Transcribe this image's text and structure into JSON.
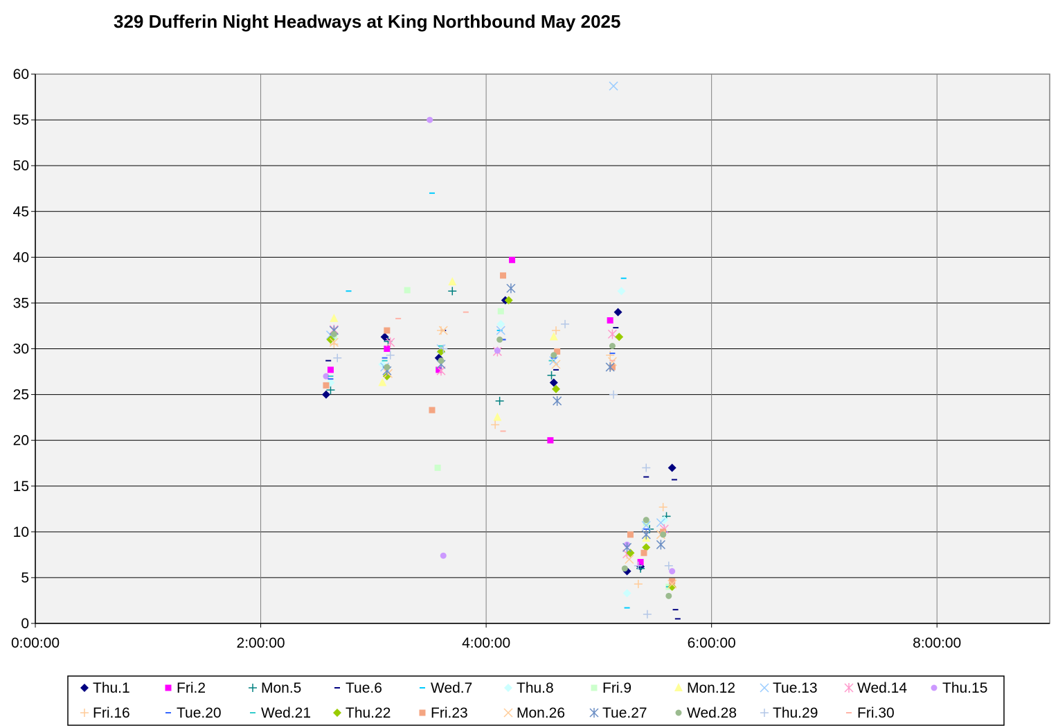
{
  "chart_data": {
    "type": "scatter",
    "title": "329 Dufferin Night Headways at King Northbound May 2025",
    "xlabel": "",
    "ylabel": "",
    "x_unit": "hours",
    "xlim": [
      0,
      9
    ],
    "ylim": [
      0,
      60
    ],
    "x_ticks": [
      0,
      2,
      4,
      6,
      8
    ],
    "x_tick_labels": [
      "0:00:00",
      "2:00:00",
      "4:00:00",
      "6:00:00",
      "8:00:00"
    ],
    "y_ticks": [
      0,
      5,
      10,
      15,
      20,
      25,
      30,
      35,
      40,
      45,
      50,
      55,
      60
    ],
    "y_tick_labels": [
      "0",
      "5",
      "10",
      "15",
      "20",
      "25",
      "30",
      "35",
      "40",
      "45",
      "50",
      "55",
      "60"
    ],
    "grid": true,
    "plot_background": "#f2f2f2",
    "legend_position": "bottom",
    "series": [
      {
        "name": "Thu.1",
        "marker": "diamond",
        "color": "#000080",
        "points": [
          [
            2.58,
            25
          ],
          [
            3.1,
            31.3
          ],
          [
            3.58,
            29
          ],
          [
            4.17,
            35.3
          ],
          [
            4.6,
            26.3
          ],
          [
            5.17,
            34
          ],
          [
            5.25,
            5.7
          ],
          [
            5.37,
            6.2
          ],
          [
            5.65,
            17
          ]
        ]
      },
      {
        "name": "Fri.2",
        "marker": "square",
        "color": "#ff00ff",
        "points": [
          [
            2.62,
            27.7
          ],
          [
            3.12,
            30
          ],
          [
            3.58,
            27.7
          ],
          [
            4.23,
            39.7
          ],
          [
            4.57,
            20
          ],
          [
            5.1,
            33.1
          ],
          [
            5.37,
            6.7
          ]
        ]
      },
      {
        "name": "Mon.5",
        "marker": "plus",
        "color": "#008080",
        "points": [
          [
            2.62,
            25.5
          ],
          [
            3.13,
            30.8
          ],
          [
            3.7,
            36.3
          ],
          [
            4.12,
            24.3
          ],
          [
            4.58,
            27.1
          ],
          [
            5.37,
            6
          ],
          [
            5.45,
            10.3
          ],
          [
            5.6,
            11.7
          ]
        ]
      },
      {
        "name": "Tue.6",
        "marker": "dash",
        "color": "#000080",
        "points": [
          [
            2.6,
            28.7
          ],
          [
            3.12,
            31
          ],
          [
            3.62,
            32
          ],
          [
            4.15,
            31
          ],
          [
            4.62,
            27.7
          ],
          [
            5.15,
            32.3
          ],
          [
            5.42,
            16
          ],
          [
            5.67,
            15.7
          ],
          [
            5.68,
            1.5
          ],
          [
            5.7,
            0.5
          ]
        ]
      },
      {
        "name": "Wed.7",
        "marker": "dash",
        "color": "#00ccff",
        "points": [
          [
            2.78,
            36.3
          ],
          [
            3.52,
            47
          ],
          [
            4.12,
            32
          ],
          [
            5.22,
            37.7
          ],
          [
            5.25,
            1.7
          ]
        ]
      },
      {
        "name": "Thu.8",
        "marker": "diamond",
        "color": "#ccffff",
        "points": [
          [
            2.62,
            26.3
          ],
          [
            3.08,
            28.3
          ],
          [
            4.13,
            32.7
          ],
          [
            5.2,
            36.3
          ],
          [
            5.25,
            3.3
          ],
          [
            5.58,
            11.3
          ]
        ]
      },
      {
        "name": "Fri.9",
        "marker": "square",
        "color": "#ccffcc",
        "points": [
          [
            2.65,
            31.3
          ],
          [
            3.3,
            36.4
          ],
          [
            3.57,
            17
          ],
          [
            4.13,
            34.1
          ],
          [
            5.42,
            11
          ],
          [
            5.62,
            4
          ]
        ]
      },
      {
        "name": "Mon.12",
        "marker": "triangle",
        "color": "#ffff99",
        "points": [
          [
            2.65,
            33.3
          ],
          [
            3.08,
            26.3
          ],
          [
            3.7,
            37.3
          ],
          [
            4.1,
            22.5
          ],
          [
            4.6,
            31.3
          ],
          [
            5.42,
            9.3
          ]
        ]
      },
      {
        "name": "Tue.13",
        "marker": "x",
        "color": "#99ccff",
        "points": [
          [
            2.62,
            31.5
          ],
          [
            3.1,
            28
          ],
          [
            3.6,
            30
          ],
          [
            4.13,
            32
          ],
          [
            4.6,
            28.7
          ],
          [
            5.13,
            58.7
          ],
          [
            5.42,
            10.7
          ],
          [
            5.55,
            11
          ]
        ]
      },
      {
        "name": "Wed.14",
        "marker": "star",
        "color": "#ff99cc",
        "points": [
          [
            2.65,
            32.1
          ],
          [
            3.15,
            30.7
          ],
          [
            3.6,
            27.6
          ],
          [
            4.1,
            29.7
          ],
          [
            5.12,
            31.6
          ],
          [
            5.25,
            7.6
          ],
          [
            5.58,
            10.3
          ]
        ]
      },
      {
        "name": "Thu.15",
        "marker": "circle",
        "color": "#cc99ff",
        "points": [
          [
            2.58,
            27
          ],
          [
            3.5,
            55
          ],
          [
            3.62,
            7.4
          ],
          [
            4.1,
            29.8
          ],
          [
            5.25,
            8.6
          ],
          [
            5.65,
            5.7
          ]
        ]
      },
      {
        "name": "Fri.16",
        "marker": "plus",
        "color": "#ffcc99",
        "points": [
          [
            2.65,
            30.5
          ],
          [
            3.6,
            32
          ],
          [
            4.08,
            21.7
          ],
          [
            4.62,
            32
          ],
          [
            5.1,
            29.3
          ],
          [
            5.35,
            4.3
          ],
          [
            5.57,
            12.7
          ]
        ]
      },
      {
        "name": "Tue.20",
        "marker": "dash",
        "color": "#3366ff",
        "points": [
          [
            2.62,
            26.7
          ],
          [
            3.1,
            29
          ],
          [
            4.15,
            31
          ],
          [
            4.6,
            29
          ],
          [
            5.12,
            29.5
          ],
          [
            5.42,
            10.3
          ],
          [
            5.58,
            10
          ]
        ]
      },
      {
        "name": "Wed.21",
        "marker": "dash",
        "color": "#33cccc",
        "points": [
          [
            2.62,
            27
          ],
          [
            3.1,
            28.7
          ],
          [
            3.6,
            30.3
          ],
          [
            4.58,
            28.7
          ],
          [
            5.62,
            4
          ]
        ]
      },
      {
        "name": "Thu.22",
        "marker": "diamond",
        "color": "#99cc00",
        "points": [
          [
            2.62,
            31
          ],
          [
            3.12,
            27
          ],
          [
            3.6,
            29.7
          ],
          [
            4.2,
            35.3
          ],
          [
            4.62,
            25.6
          ],
          [
            5.18,
            31.3
          ],
          [
            5.28,
            7.7
          ],
          [
            5.42,
            8.3
          ],
          [
            5.65,
            4
          ]
        ]
      },
      {
        "name": "Fri.23",
        "marker": "square",
        "color": "#f4a582",
        "points": [
          [
            2.58,
            26
          ],
          [
            3.12,
            32
          ],
          [
            3.52,
            23.3
          ],
          [
            4.15,
            38
          ],
          [
            4.63,
            29.7
          ],
          [
            5.12,
            28
          ],
          [
            5.28,
            9.7
          ],
          [
            5.4,
            7.7
          ],
          [
            5.57,
            10
          ],
          [
            5.65,
            4.6
          ]
        ]
      },
      {
        "name": "Mon.26",
        "marker": "x",
        "color": "#ffcc99",
        "points": [
          [
            2.65,
            30.7
          ],
          [
            3.13,
            27.3
          ],
          [
            3.62,
            32
          ],
          [
            4.62,
            28.3
          ],
          [
            5.12,
            28.6
          ],
          [
            5.27,
            7
          ],
          [
            5.55,
            9.7
          ],
          [
            5.65,
            4.3
          ]
        ]
      },
      {
        "name": "Tue.27",
        "marker": "star",
        "color": "#6b8ec4",
        "points": [
          [
            2.65,
            32
          ],
          [
            3.12,
            27.6
          ],
          [
            3.6,
            28.3
          ],
          [
            4.22,
            36.6
          ],
          [
            4.63,
            24.3
          ],
          [
            5.1,
            28
          ],
          [
            5.25,
            8.3
          ],
          [
            5.42,
            9.7
          ],
          [
            5.55,
            8.6
          ]
        ]
      },
      {
        "name": "Wed.28",
        "marker": "circle",
        "color": "#9bbb8f",
        "points": [
          [
            2.65,
            31.6
          ],
          [
            3.12,
            28
          ],
          [
            3.6,
            28.7
          ],
          [
            4.12,
            31
          ],
          [
            4.6,
            29.3
          ],
          [
            5.12,
            30.3
          ],
          [
            5.23,
            6
          ],
          [
            5.42,
            11.3
          ],
          [
            5.57,
            9.7
          ],
          [
            5.62,
            3
          ]
        ]
      },
      {
        "name": "Thu.29",
        "marker": "plus",
        "color": "#b4c7e7",
        "points": [
          [
            2.68,
            29
          ],
          [
            3.15,
            29.3
          ],
          [
            3.62,
            30
          ],
          [
            4.7,
            32.7
          ],
          [
            5.13,
            25
          ],
          [
            5.35,
            6.3
          ],
          [
            5.42,
            17
          ],
          [
            5.43,
            1
          ],
          [
            5.62,
            6.3
          ]
        ]
      },
      {
        "name": "Fri.30",
        "marker": "dash",
        "color": "#ffb3a7",
        "points": [
          [
            3.22,
            33.3
          ],
          [
            3.82,
            34
          ],
          [
            4.15,
            21
          ],
          [
            5.12,
            28.7
          ]
        ]
      }
    ]
  }
}
